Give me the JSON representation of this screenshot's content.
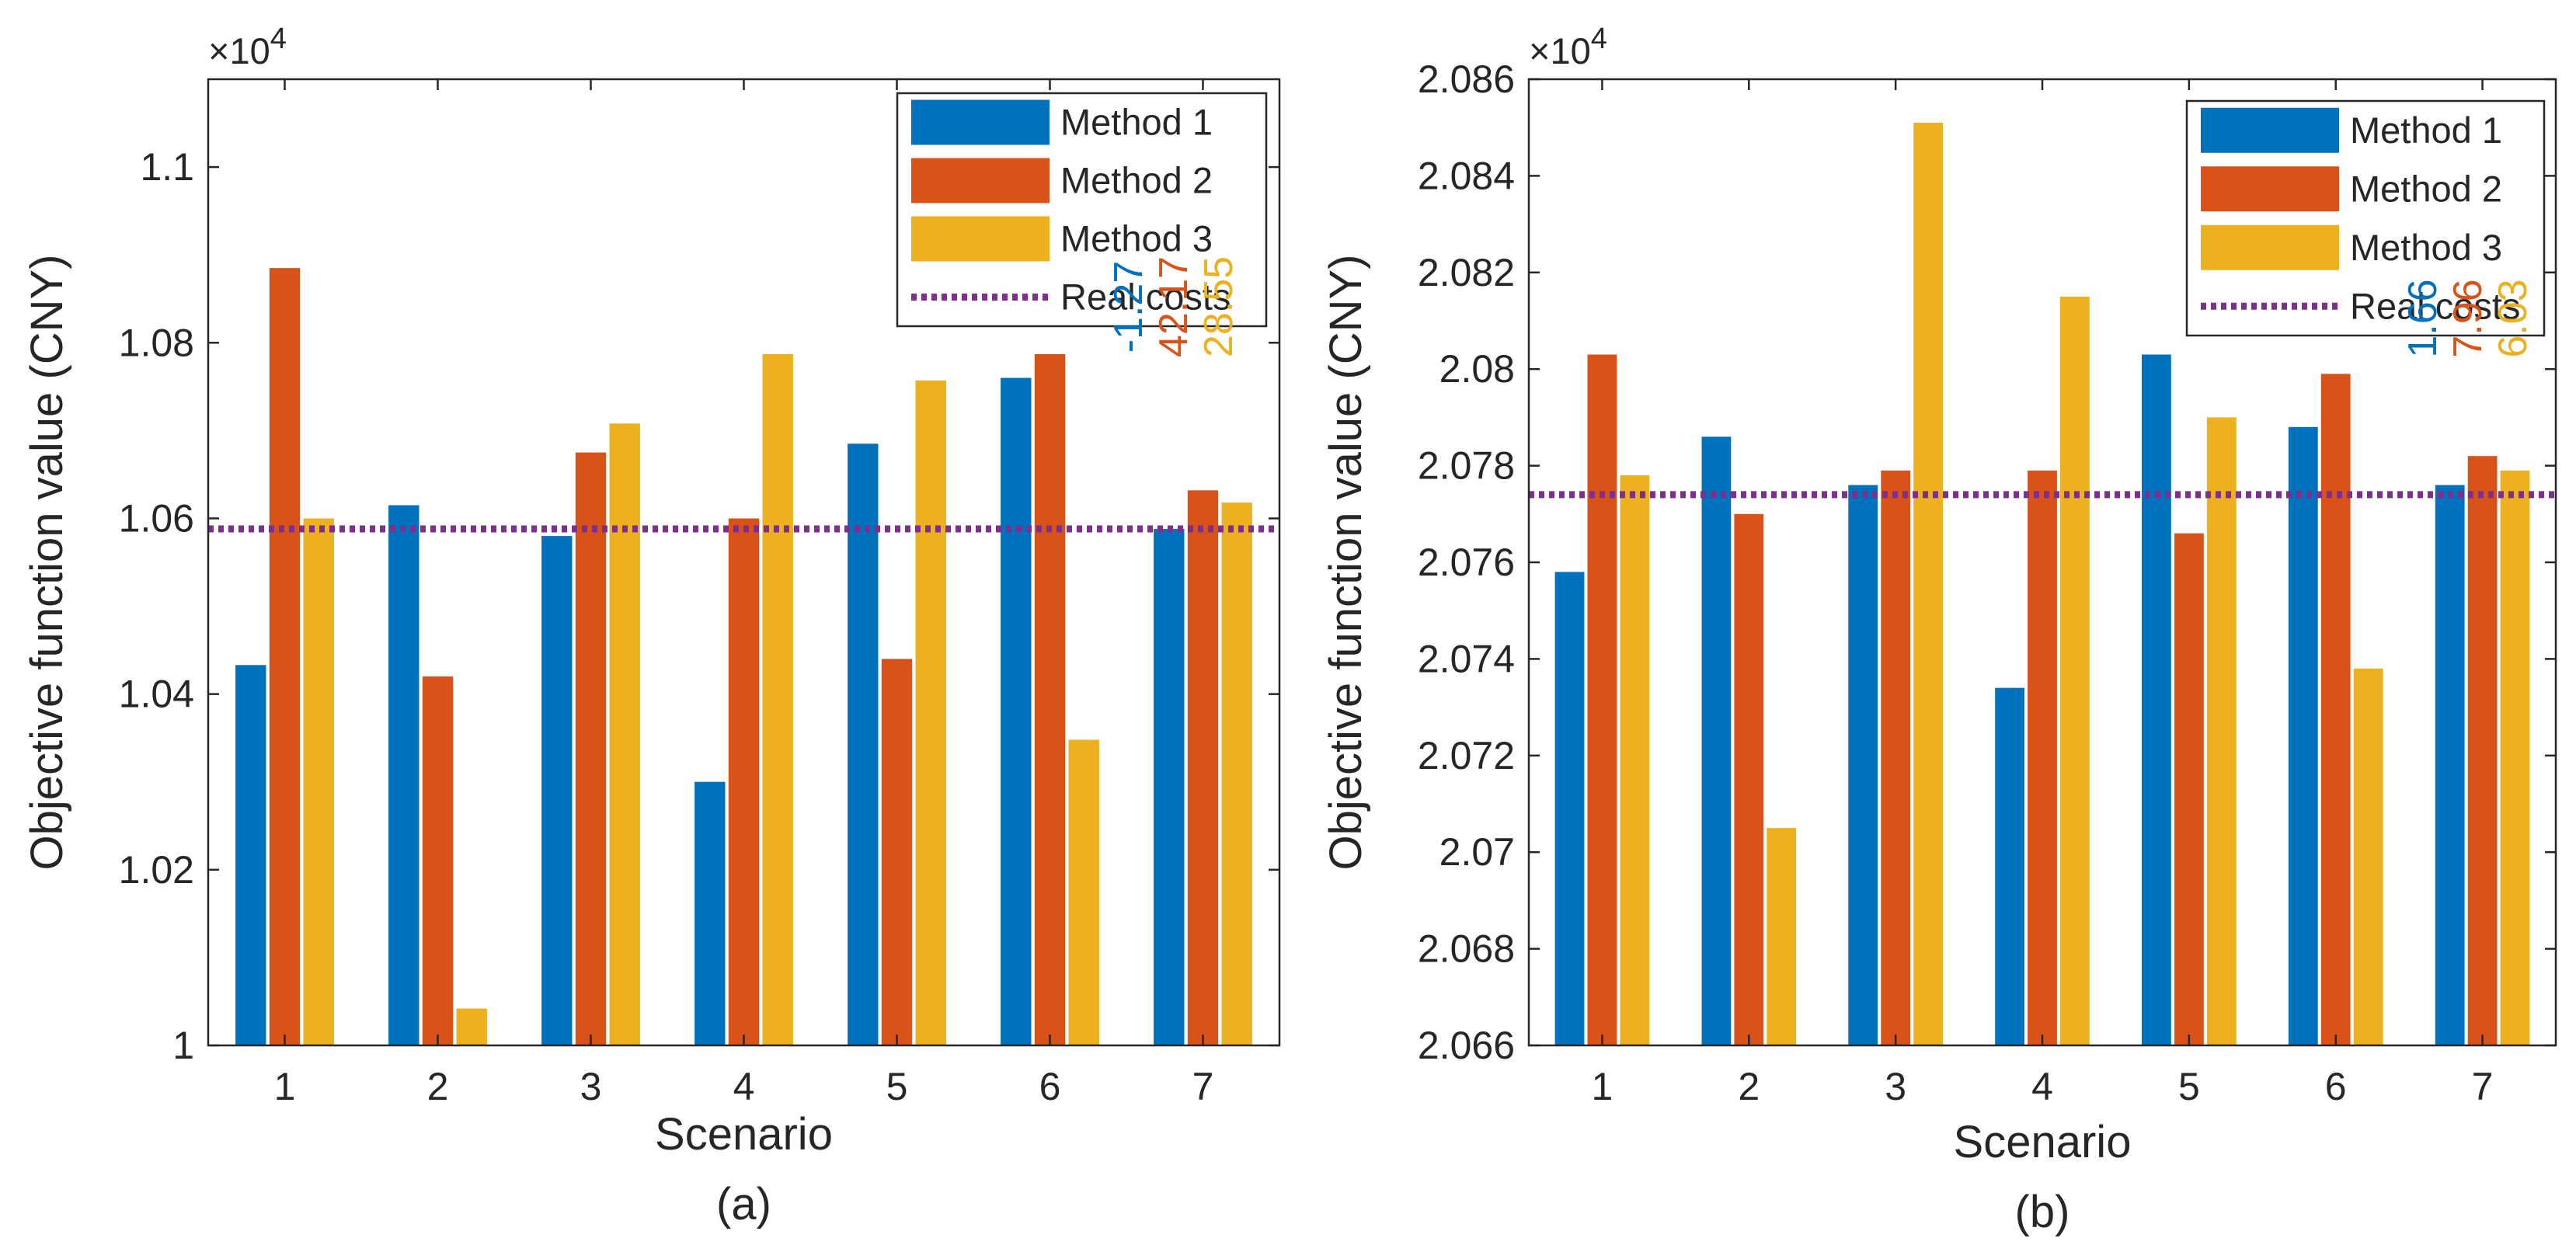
{
  "chart_data": [
    {
      "type": "bar",
      "panel_label": "(a)",
      "xlabel": "Scenario",
      "ylabel": "Objective function value (CNY)",
      "multiplier_base": "×10",
      "multiplier_exp": "4",
      "categories": [
        "1",
        "2",
        "3",
        "4",
        "5",
        "6",
        "7"
      ],
      "ylim": [
        1.0,
        1.11
      ],
      "yticks": [
        1.0,
        1.02,
        1.04,
        1.06,
        1.08,
        1.1
      ],
      "ytick_labels": [
        "1",
        "1.02",
        "1.04",
        "1.06",
        "1.08",
        "1.1"
      ],
      "series": [
        {
          "name": "Method 1",
          "color": "#0072BD",
          "values": [
            1.0433,
            1.0615,
            1.058,
            1.03,
            1.0685,
            1.076,
            1.0588
          ]
        },
        {
          "name": "Method 2",
          "color": "#D95319",
          "values": [
            1.0885,
            1.042,
            1.0675,
            1.06,
            1.044,
            1.0787,
            1.0632
          ]
        },
        {
          "name": "Method 3",
          "color": "#EDB120",
          "values": [
            1.06,
            1.0042,
            1.0708,
            1.0787,
            1.0757,
            1.0348,
            1.0618
          ]
        }
      ],
      "reference_line": {
        "name": "Real costs",
        "value": 1.0588,
        "color": "#7E2F8E"
      },
      "annotations": [
        {
          "text": "-1.27",
          "color": "#0072BD"
        },
        {
          "text": "42.17",
          "color": "#D95319"
        },
        {
          "text": "28.55",
          "color": "#EDB120"
        }
      ]
    },
    {
      "type": "bar",
      "panel_label": "(b)",
      "xlabel": "Scenario",
      "ylabel": "Objective function value (CNY)",
      "multiplier_base": "×10",
      "multiplier_exp": "4",
      "categories": [
        "1",
        "2",
        "3",
        "4",
        "5",
        "6",
        "7"
      ],
      "ylim": [
        2.066,
        2.086
      ],
      "yticks": [
        2.066,
        2.068,
        2.07,
        2.072,
        2.074,
        2.076,
        2.078,
        2.08,
        2.082,
        2.084,
        2.086
      ],
      "ytick_labels": [
        "2.066",
        "2.068",
        "2.07",
        "2.072",
        "2.074",
        "2.076",
        "2.078",
        "2.08",
        "2.082",
        "2.084",
        "2.086"
      ],
      "series": [
        {
          "name": "Method 1",
          "color": "#0072BD",
          "values": [
            2.0758,
            2.0786,
            2.0776,
            2.0734,
            2.0803,
            2.0788,
            2.0776
          ]
        },
        {
          "name": "Method 2",
          "color": "#D95319",
          "values": [
            2.0803,
            2.077,
            2.0779,
            2.0779,
            2.0766,
            2.0799,
            2.0782
          ]
        },
        {
          "name": "Method 3",
          "color": "#EDB120",
          "values": [
            2.0778,
            2.0705,
            2.0851,
            2.0815,
            2.079,
            2.0738,
            2.0779
          ]
        }
      ],
      "reference_line": {
        "name": "Real costs",
        "value": 2.0774,
        "color": "#7E2F8E"
      },
      "annotations": [
        {
          "text": "1.66",
          "color": "#0072BD"
        },
        {
          "text": "7.96",
          "color": "#D95319"
        },
        {
          "text": "6.03",
          "color": "#EDB120"
        }
      ]
    }
  ]
}
